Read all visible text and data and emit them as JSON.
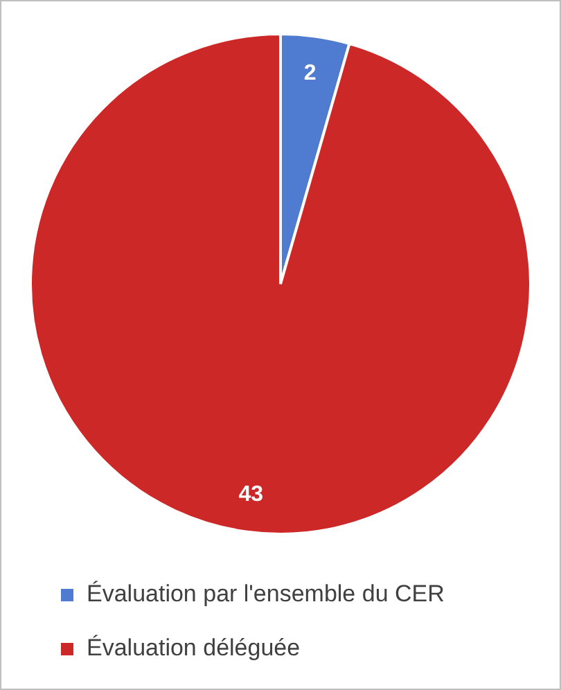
{
  "chart_data": {
    "type": "pie",
    "categories": [
      "Évaluation par l'ensemble du CER",
      "Évaluation déléguée"
    ],
    "values": [
      2,
      43
    ],
    "colors": [
      "#4f7bd0",
      "#cc2828"
    ],
    "data_labels": true,
    "legend": "bottom"
  }
}
